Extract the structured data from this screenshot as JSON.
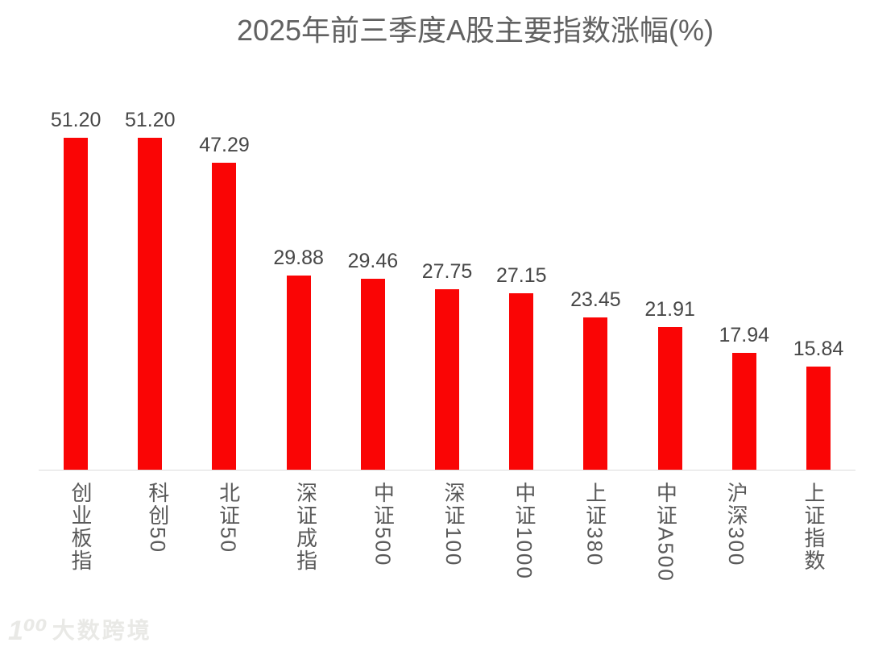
{
  "chart_data": {
    "type": "bar",
    "title": "2025年前三季度A股主要指数涨幅(%)",
    "categories": [
      "创业板指",
      "科创50",
      "北证50",
      "深证成指",
      "中证500",
      "深证100",
      "中证1000",
      "上证380",
      "中证A500",
      "沪深300",
      "上证指数"
    ],
    "values": [
      51.2,
      51.2,
      47.29,
      29.88,
      29.46,
      27.75,
      27.15,
      23.45,
      21.91,
      17.94,
      15.84
    ],
    "value_labels": [
      "51.20",
      "51.20",
      "47.29",
      "29.88",
      "29.46",
      "27.75",
      "27.15",
      "23.45",
      "21.91",
      "17.94",
      "15.84"
    ],
    "xlabel": "",
    "ylabel": "",
    "ylim": [
      0,
      51.2
    ],
    "grid": false,
    "legend": false,
    "bar_color": "#fa0505",
    "title_color": "#616161",
    "value_label_color": "#474747",
    "category_label_color": "#595959",
    "axis_line_color": "#dcdcdc"
  },
  "watermark": {
    "logo": "1⁰⁰",
    "text": "大数跨境"
  }
}
